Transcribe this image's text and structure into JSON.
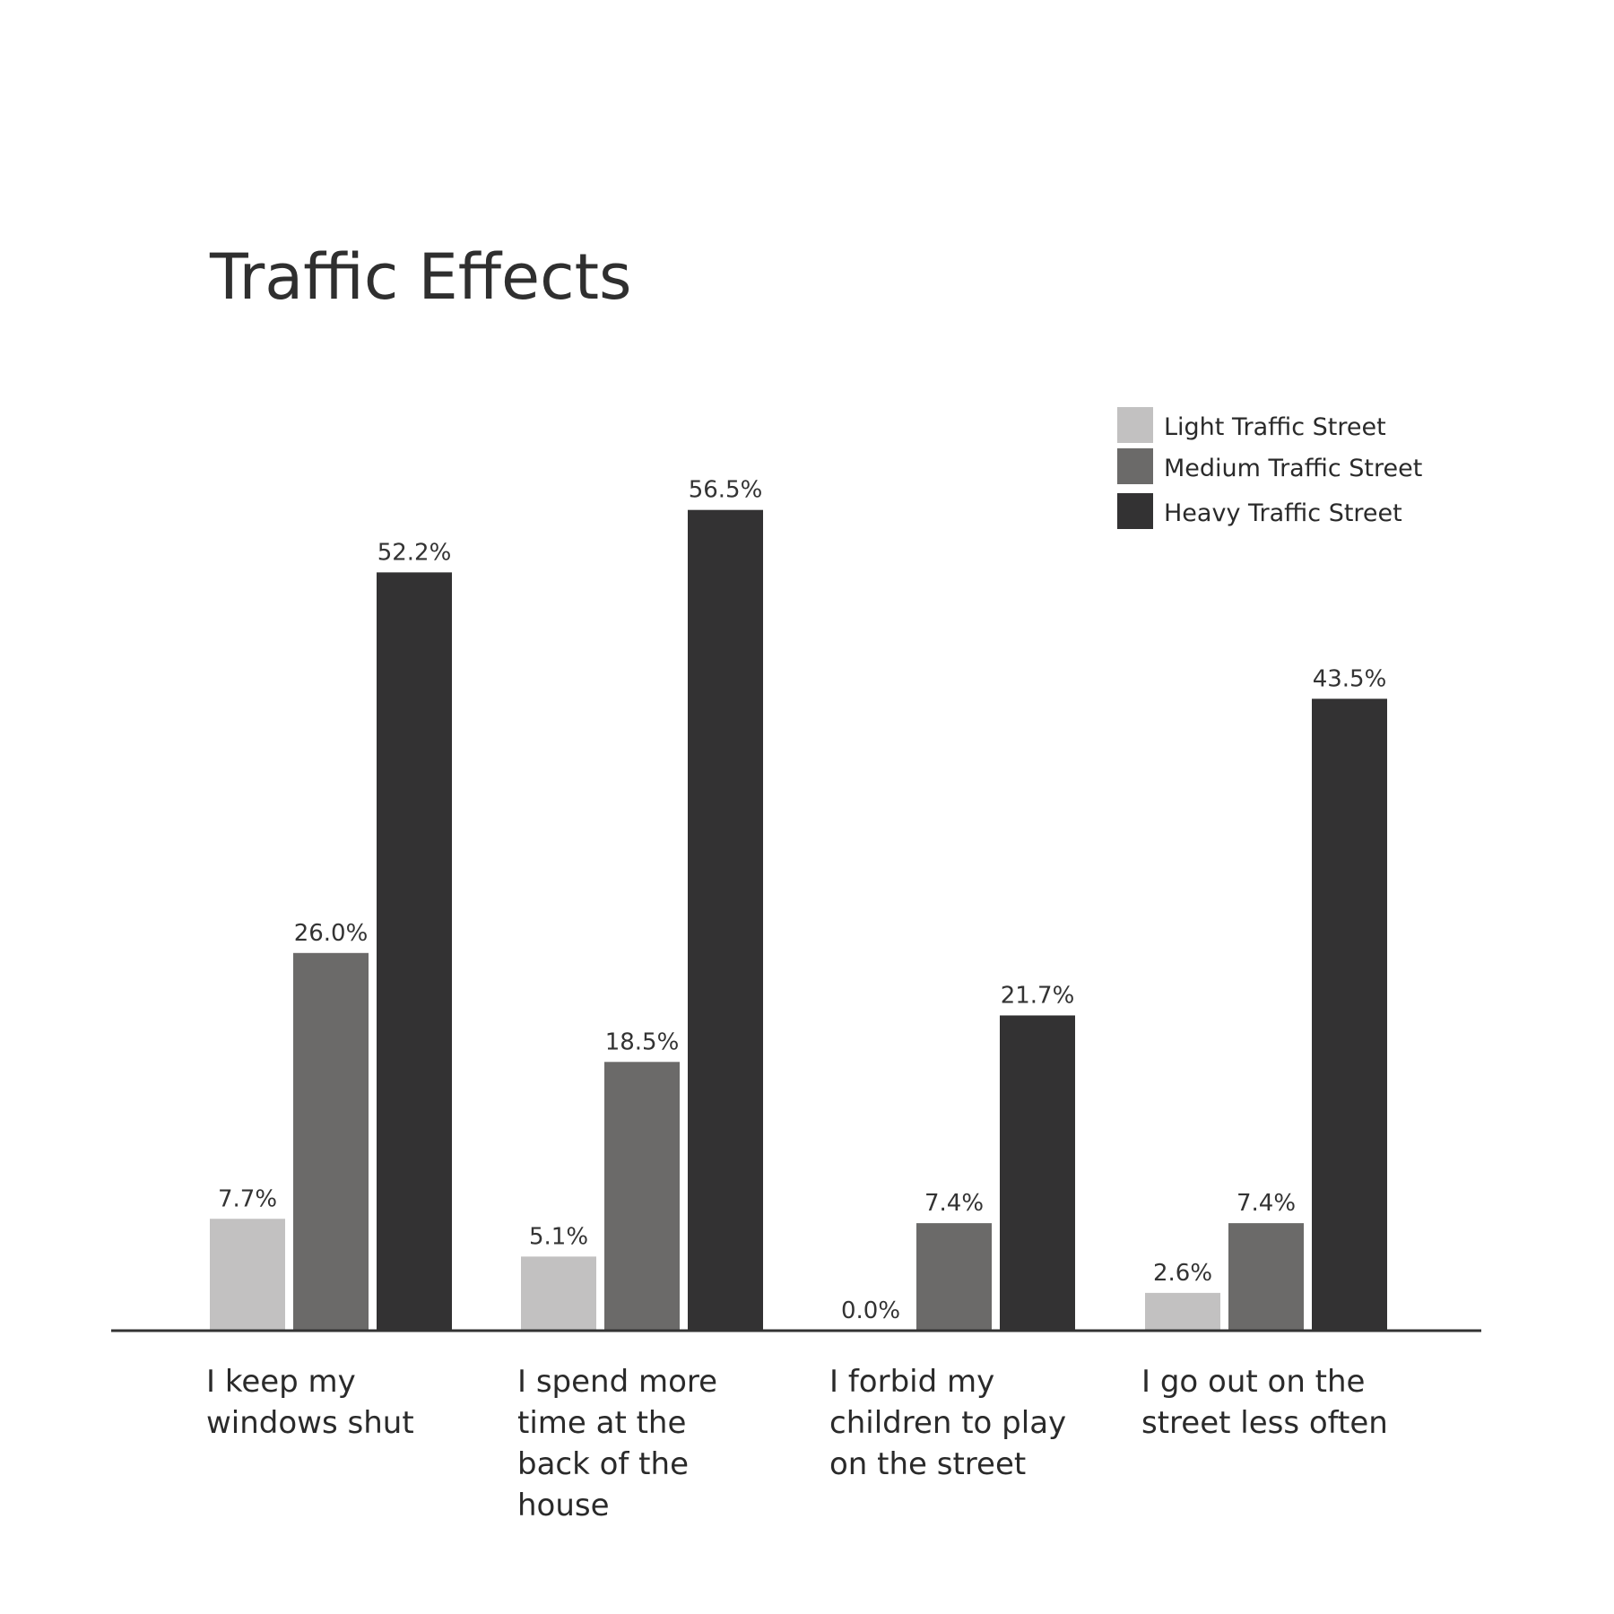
{
  "chart_data": {
    "type": "bar",
    "title": "Traffic Effects",
    "xlabel": "",
    "ylabel": "",
    "ylim": [
      0,
      60
    ],
    "grid": false,
    "legend_position": "top-right",
    "categories": [
      [
        "I keep my",
        "windows shut"
      ],
      [
        "I spend more",
        "time at the",
        "back of the",
        "house"
      ],
      [
        "I forbid my",
        "children to play",
        "on the street"
      ],
      [
        "I go out on the",
        "street less often"
      ]
    ],
    "series": [
      {
        "name": "Light Traffic Street",
        "color": "#c2c1c1",
        "values": [
          7.7,
          5.1,
          0.0,
          2.6
        ],
        "labels": [
          "7.7%",
          "5.1%",
          "0.0%",
          "2.6%"
        ]
      },
      {
        "name": "Medium Traffic Street",
        "color": "#6b6a69",
        "values": [
          26.0,
          18.5,
          7.4,
          7.4
        ],
        "labels": [
          "26.0%",
          "18.5%",
          "7.4%",
          "7.4%"
        ]
      },
      {
        "name": "Heavy Traffic Street",
        "color": "#333233",
        "values": [
          52.2,
          56.5,
          21.7,
          43.5
        ],
        "labels": [
          "52.2%",
          "56.5%",
          "21.7%",
          "43.5%"
        ]
      }
    ],
    "axis_color": "#333333"
  }
}
